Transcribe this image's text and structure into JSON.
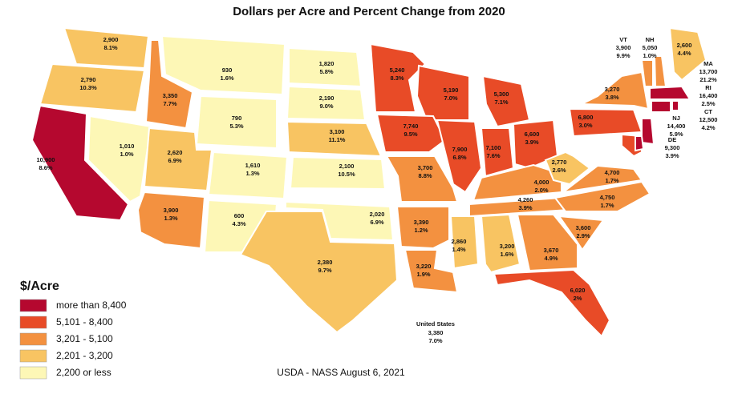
{
  "title": "Dollars per Acre and Percent Change from 2020",
  "states": [
    {
      "value": "2,900",
      "change": "8.1%",
      "color": "#f8c462"
    },
    {
      "value": "2,790",
      "change": "10.3%",
      "color": "#f8c462"
    },
    {
      "value": "10,900",
      "change": "8.6%",
      "color": "#b5082f"
    },
    {
      "value": "1,010",
      "change": "1.0%",
      "color": "#fdf7b6"
    },
    {
      "value": "3,350",
      "change": "7.7%",
      "color": "#f39140"
    },
    {
      "value": "930",
      "change": "1.6%",
      "color": "#fdf7b6"
    },
    {
      "value": "790",
      "change": "5.3%",
      "color": "#fdf7b6"
    },
    {
      "value": "2,620",
      "change": "6.9%",
      "color": "#f8c462"
    },
    {
      "value": "1,610",
      "change": "1.3%",
      "color": "#fdf7b6"
    },
    {
      "value": "3,900",
      "change": "1.3%",
      "color": "#f39140"
    },
    {
      "value": "600",
      "change": "4.3%",
      "color": "#fdf7b6"
    },
    {
      "value": "1,820",
      "change": "5.8%",
      "color": "#fdf7b6"
    },
    {
      "value": "2,190",
      "change": "9.0%",
      "color": "#fdf7b6"
    },
    {
      "value": "3,100",
      "change": "11.1%",
      "color": "#f8c462"
    },
    {
      "value": "2,100",
      "change": "10.5%",
      "color": "#fdf7b6"
    },
    {
      "value": "2,020",
      "change": "6.9%",
      "color": "#fdf7b6"
    },
    {
      "value": "2,380",
      "change": "9.7%",
      "color": "#f8c462"
    },
    {
      "value": "5,240",
      "change": "8.3%",
      "color": "#e84b27"
    },
    {
      "value": "5,190",
      "change": "7.0%",
      "color": "#e84b27"
    },
    {
      "value": "5,300",
      "change": "7.1%",
      "color": "#e84b27"
    },
    {
      "value": "7,740",
      "change": "9.5%",
      "color": "#e84b27"
    },
    {
      "value": "7,900",
      "change": "6.8%",
      "color": "#e84b27"
    },
    {
      "value": "7,100",
      "change": "7.6%",
      "color": "#e84b27"
    },
    {
      "value": "6,600",
      "change": "3.9%",
      "color": "#e84b27"
    },
    {
      "value": "3,700",
      "change": "8.8%",
      "color": "#f39140"
    },
    {
      "value": "3,390",
      "change": "1.2%",
      "color": "#f39140"
    },
    {
      "value": "3,220",
      "change": "1.9%",
      "color": "#f39140"
    },
    {
      "value": "2,860",
      "change": "1.4%",
      "color": "#f8c462"
    },
    {
      "value": "3,200",
      "change": "1.6%",
      "color": "#f8c462"
    },
    {
      "value": "3,670",
      "change": "4.9%",
      "color": "#f39140"
    },
    {
      "value": "3,600",
      "change": "2.9%",
      "color": "#f39140"
    },
    {
      "value": "6,020",
      "change": "2%",
      "color": "#e84b27"
    },
    {
      "value": "4,260",
      "change": "3.9%",
      "color": "#f39140"
    },
    {
      "value": "4,000",
      "change": "2.0%",
      "color": "#f39140"
    },
    {
      "value": "4,750",
      "change": "1.7%",
      "color": "#f39140"
    },
    {
      "value": "4,700",
      "change": "1.7%",
      "color": "#f39140"
    },
    {
      "value": "2,770",
      "change": "2.6%",
      "color": "#f8c462"
    },
    {
      "value": "6,800",
      "change": "3.0%",
      "color": "#e84b27"
    },
    {
      "value": "3,270",
      "change": "3.8%",
      "color": "#f39140"
    },
    {
      "value": "2,600",
      "change": "4.4%",
      "color": "#f8c462"
    },
    {
      "label": "VT",
      "value": "3,900",
      "change": "9.9%",
      "color": "#f39140"
    },
    {
      "label": "NH",
      "value": "5,050",
      "change": "1.0%",
      "color": "#f39140"
    },
    {
      "label": "MA",
      "value": "13,700",
      "change": "21.2%",
      "color": "#b5082f"
    },
    {
      "label": "RI",
      "value": "16,400",
      "change": "2.5%",
      "color": "#b5082f"
    },
    {
      "label": "CT",
      "value": "12,500",
      "change": "4.2%",
      "color": "#b5082f"
    },
    {
      "label": "NJ",
      "value": "14,400",
      "change": "5.9%",
      "color": "#b5082f"
    },
    {
      "label": "DE",
      "value": "9,300",
      "change": "3.9%",
      "color": "#b5082f"
    }
  ],
  "national": {
    "label": "United States",
    "value": "3,380",
    "change": "7.0%"
  },
  "legend": {
    "title": "$/Acre",
    "items": [
      {
        "label": "more than 8,400",
        "color": "#b5082f"
      },
      {
        "label": "5,101 - 8,400",
        "color": "#e84b27"
      },
      {
        "label": "3,201 - 5,100",
        "color": "#f39140"
      },
      {
        "label": "2,201 - 3,200",
        "color": "#f8c462"
      },
      {
        "label": "2,200 or less",
        "color": "#fdf7b6"
      }
    ]
  },
  "source": "USDA - NASS August 6, 2021"
}
